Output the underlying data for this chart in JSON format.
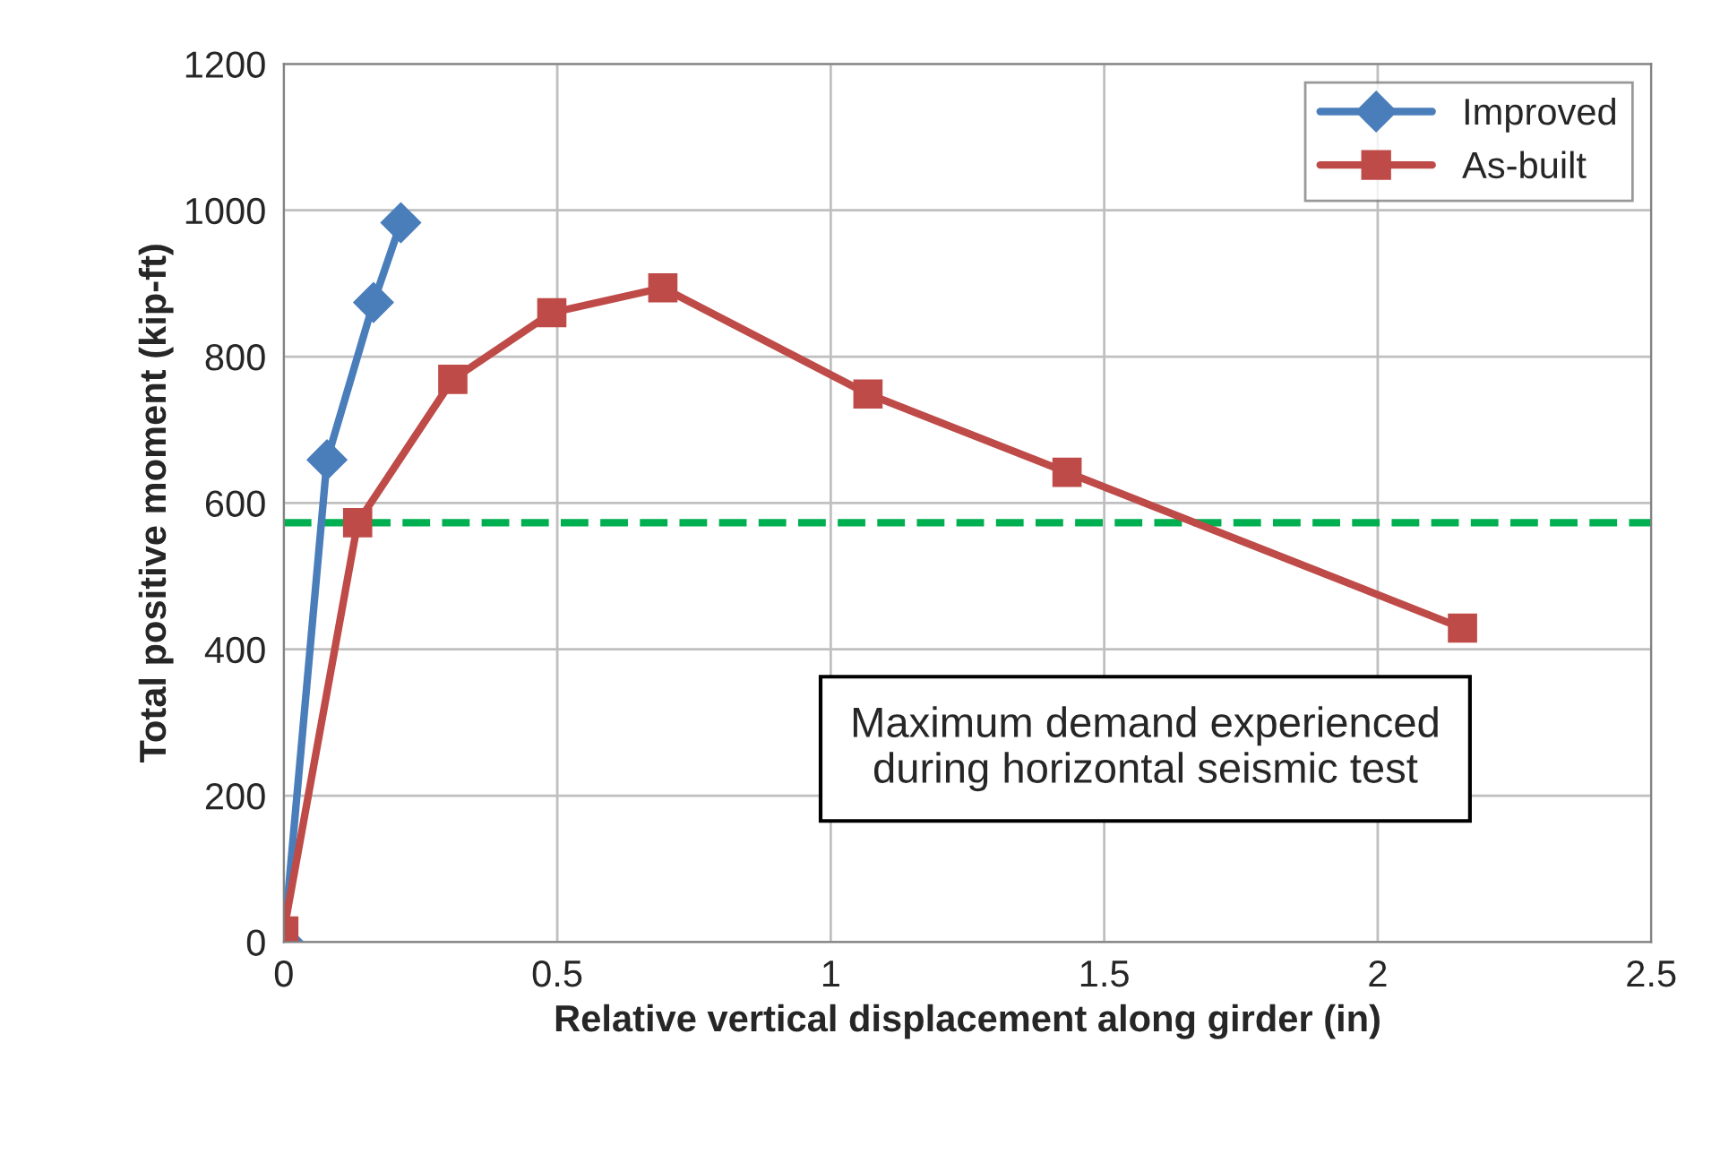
{
  "chart_data": {
    "type": "line",
    "xlabel": "Relative vertical displacement along girder (in)",
    "ylabel": "Total positive moment (kip-ft)",
    "xlim": [
      0,
      2.5
    ],
    "xticks": [
      0,
      0.5,
      1,
      1.5,
      2,
      2.5
    ],
    "ylim": [
      0,
      1200
    ],
    "yticks": [
      0,
      200,
      400,
      600,
      800,
      1000,
      1200
    ],
    "grid": true,
    "legend": "top right",
    "line_style": "solid",
    "series": [
      {
        "name": "Improved",
        "color": "#4a7ebb",
        "marker": "diamond",
        "x": [
          0,
          0.079,
          0.164,
          0.214
        ],
        "values": [
          0,
          659,
          874,
          983
        ]
      },
      {
        "name": "As-built",
        "color": "#be4b48",
        "marker": "square",
        "x": [
          0,
          0.135,
          0.309,
          0.49,
          0.693,
          1.068,
          1.432,
          2.155
        ],
        "values": [
          15,
          573,
          769,
          860,
          894,
          749,
          642,
          429
        ]
      }
    ],
    "ref_lines": [
      {
        "axis": "y",
        "value": 573,
        "color": "#00b050",
        "line_style": "dashed"
      }
    ],
    "annotations": [
      "Maximum demand experienced\nduring horizontal seismic test"
    ]
  }
}
